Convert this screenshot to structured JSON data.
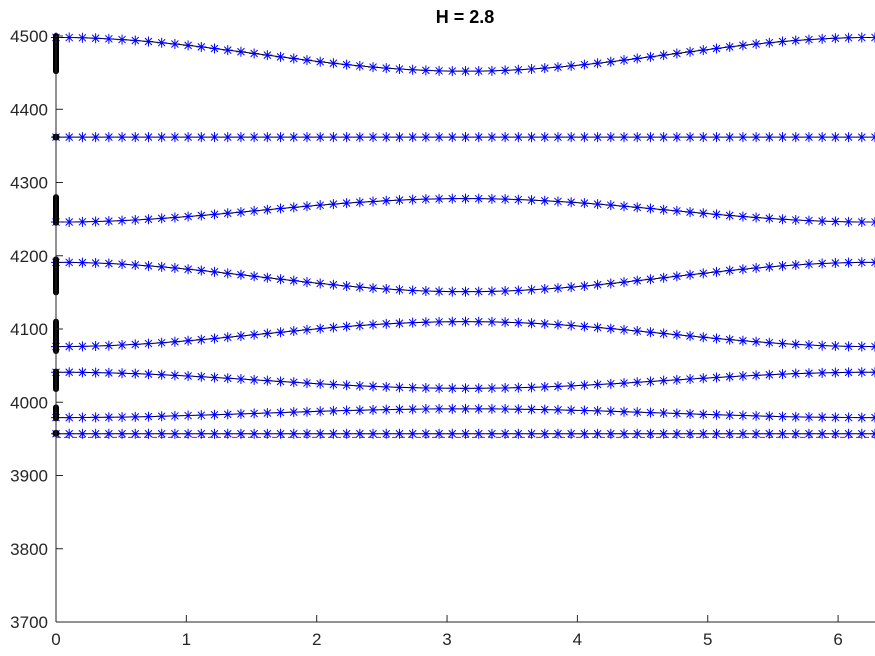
{
  "chart_data": {
    "type": "line",
    "title": "H = 2.8",
    "xlabel": "",
    "ylabel": "",
    "xlim": [
      0,
      6.2832
    ],
    "ylim": [
      3700,
      4500
    ],
    "x_ticks": [
      0,
      1,
      2,
      3,
      4,
      5,
      6
    ],
    "y_ticks": [
      3700,
      3800,
      3900,
      4000,
      4100,
      4200,
      4300,
      4400,
      4500
    ],
    "grid": false,
    "legend": "none",
    "marker": "asterisk",
    "num_points_per_band": 63,
    "colors": {
      "marker": "#0000ff",
      "line": "#000000",
      "reference_line": "#ff0000",
      "edge_markers": "#000000",
      "axis": "#262626"
    },
    "reference_line": {
      "y": 3952
    },
    "band_model": "y = base + amplitude * cos(x)",
    "bands": [
      {
        "base": 3957,
        "amplitude": 0
      },
      {
        "base": 3985,
        "amplitude": -6
      },
      {
        "base": 4030,
        "amplitude": 11
      },
      {
        "base": 4093,
        "amplitude": -17
      },
      {
        "base": 4171,
        "amplitude": 20
      },
      {
        "base": 4262,
        "amplitude": -16
      },
      {
        "base": 4362,
        "amplitude": 0
      },
      {
        "base": 4475,
        "amplitude": 23
      }
    ],
    "edge_markers_at_x0": [
      {
        "y_from": 3955,
        "y_to": 3960
      },
      {
        "y_from": 3978,
        "y_to": 3993
      },
      {
        "y_from": 4018,
        "y_to": 4042
      },
      {
        "y_from": 4070,
        "y_to": 4110
      },
      {
        "y_from": 4150,
        "y_to": 4195
      },
      {
        "y_from": 4245,
        "y_to": 4280
      },
      {
        "y_from": 4360,
        "y_to": 4364
      },
      {
        "y_from": 4452,
        "y_to": 4500
      }
    ]
  }
}
